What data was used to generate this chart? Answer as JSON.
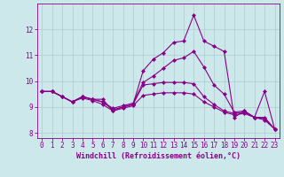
{
  "xlabel": "Windchill (Refroidissement éolien,°C)",
  "background_color": "#cce8ea",
  "line_color": "#880088",
  "grid_color": "#aacccc",
  "x_values": [
    0,
    1,
    2,
    3,
    4,
    5,
    6,
    7,
    8,
    9,
    10,
    11,
    12,
    13,
    14,
    15,
    16,
    17,
    18,
    19,
    20,
    21,
    22,
    23
  ],
  "series": [
    [
      9.6,
      9.6,
      9.4,
      9.2,
      9.4,
      9.3,
      9.3,
      8.85,
      9.0,
      9.1,
      10.4,
      10.85,
      11.1,
      11.5,
      11.55,
      12.55,
      11.55,
      11.35,
      11.15,
      8.6,
      8.85,
      8.6,
      9.6,
      8.15
    ],
    [
      9.6,
      9.6,
      9.4,
      9.2,
      9.4,
      9.3,
      9.2,
      8.95,
      9.05,
      9.15,
      9.95,
      10.2,
      10.5,
      10.8,
      10.9,
      11.15,
      10.55,
      9.85,
      9.5,
      8.8,
      8.85,
      8.6,
      8.6,
      8.15
    ],
    [
      9.6,
      9.6,
      9.4,
      9.2,
      9.4,
      9.3,
      9.2,
      8.9,
      9.0,
      9.1,
      9.85,
      9.9,
      9.95,
      9.95,
      9.95,
      9.9,
      9.4,
      9.1,
      8.85,
      8.75,
      8.8,
      8.6,
      8.55,
      8.15
    ],
    [
      9.6,
      9.6,
      9.4,
      9.2,
      9.35,
      9.25,
      9.1,
      8.85,
      8.95,
      9.05,
      9.45,
      9.5,
      9.55,
      9.55,
      9.55,
      9.5,
      9.2,
      9.0,
      8.8,
      8.7,
      8.75,
      8.6,
      8.5,
      8.15
    ]
  ],
  "ylim": [
    7.8,
    13.0
  ],
  "xlim": [
    -0.5,
    23.5
  ],
  "yticks": [
    8,
    9,
    10,
    11,
    12
  ],
  "xticks": [
    0,
    1,
    2,
    3,
    4,
    5,
    6,
    7,
    8,
    9,
    10,
    11,
    12,
    13,
    14,
    15,
    16,
    17,
    18,
    19,
    20,
    21,
    22,
    23
  ],
  "marker": "D",
  "markersize": 2.0,
  "linewidth": 0.8,
  "tick_fontsize": 5.5,
  "xlabel_fontsize": 6.0
}
